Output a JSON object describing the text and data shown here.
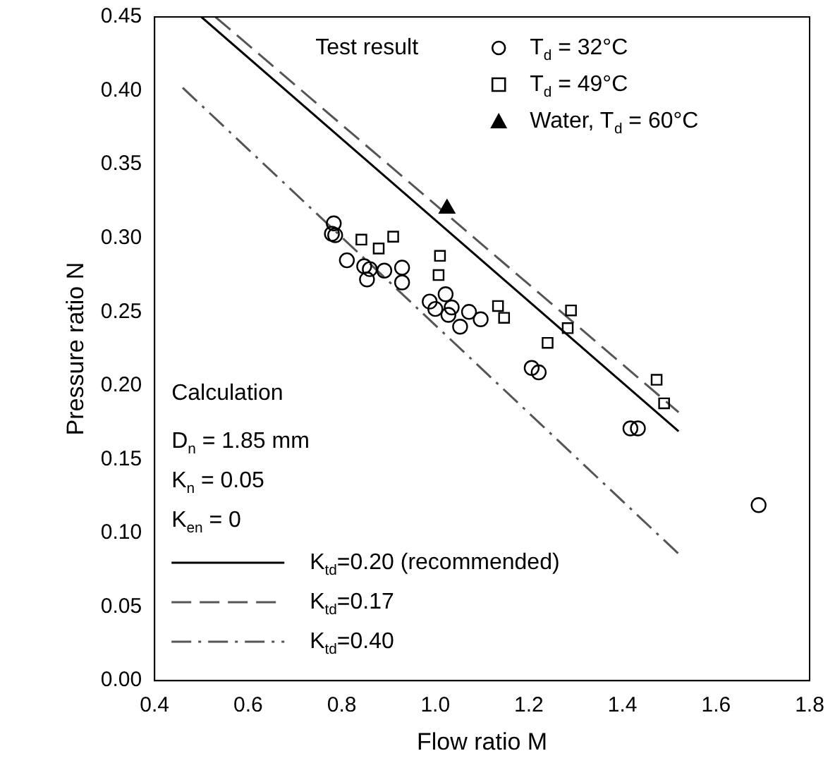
{
  "chart_data": {
    "type": "scatter",
    "xlabel": "Flow ratio M",
    "ylabel": "Pressure ratio N",
    "legend": "top left",
    "legend_title": "Test result",
    "xlim": [
      0.4,
      1.8
    ],
    "xticks": [
      0.4,
      0.6,
      0.8,
      {
        "value": 1,
        "label": "1.0"
      },
      1.2,
      1.4,
      1.6,
      1.8
    ],
    "ylim": [
      0,
      0.45
    ],
    "yticks": [
      {
        "value": 0,
        "label": "0.00"
      },
      0.05,
      {
        "value": 0.1,
        "label": "0.10"
      },
      0.15,
      {
        "value": 0.2,
        "label": "0.20"
      },
      0.25,
      {
        "value": 0.3,
        "label": "0.30"
      },
      0.35,
      {
        "value": 0.4,
        "label": "0.40"
      },
      0.45
    ],
    "grid": false,
    "annotations": [
      "Calculation",
      "D$_{n}$ = 1.85 mm",
      "K$_{n}$ = 0.05",
      "K$_{en}$ = 0"
    ],
    "series": [
      {
        "name": "T$_{d}$ = 32°C",
        "type": "scatter",
        "marker": "circle",
        "color": "#000000",
        "x": [
          0.783,
          0.779,
          0.786,
          0.811,
          0.848,
          0.86,
          0.854,
          0.891,
          0.929,
          0.929,
          0.988,
          1.0,
          1.022,
          1.035,
          1.028,
          1.053,
          1.072,
          1.097,
          1.206,
          1.221,
          1.417,
          1.433,
          1.691
        ],
        "values": [
          0.31,
          0.303,
          0.302,
          0.285,
          0.281,
          0.279,
          0.272,
          0.278,
          0.28,
          0.27,
          0.257,
          0.252,
          0.262,
          0.253,
          0.248,
          0.24,
          0.25,
          0.245,
          0.212,
          0.209,
          0.171,
          0.171,
          0.119
        ]
      },
      {
        "name": "T$_{d}$ = 49°C",
        "type": "scatter",
        "marker": "square",
        "color": "#000000",
        "x": [
          0.842,
          0.879,
          0.91,
          1.01,
          1.007,
          1.134,
          1.147,
          1.24,
          1.283,
          1.29,
          1.473,
          1.489
        ],
        "values": [
          0.299,
          0.293,
          0.301,
          0.288,
          0.275,
          0.254,
          0.246,
          0.229,
          0.239,
          0.251,
          0.204,
          0.188
        ]
      },
      {
        "name": "Water, T$_{d}$ = 60°C",
        "type": "scatter",
        "marker": "triangle",
        "color": "#000000",
        "x": [
          1.025
        ],
        "values": [
          0.32
        ]
      },
      {
        "name": "K$_{td}$=0.20 (recommended)",
        "type": "line",
        "line_style": "solid",
        "marker": "none",
        "color": "#000000",
        "x": [
          0.5,
          1.52
        ],
        "values": [
          0.45,
          0.169
        ]
      },
      {
        "name": "K$_{td}$=0.17",
        "type": "line",
        "line_style": "dashed",
        "marker": "none",
        "color": "#555555",
        "x": [
          0.53,
          1.52
        ],
        "values": [
          0.45,
          0.182
        ]
      },
      {
        "name": "K$_{td}$=0.40",
        "type": "line",
        "line_style": "dashdot",
        "marker": "none",
        "color": "#555555",
        "x": [
          0.46,
          1.52
        ],
        "values": [
          0.402,
          0.086
        ]
      }
    ]
  }
}
